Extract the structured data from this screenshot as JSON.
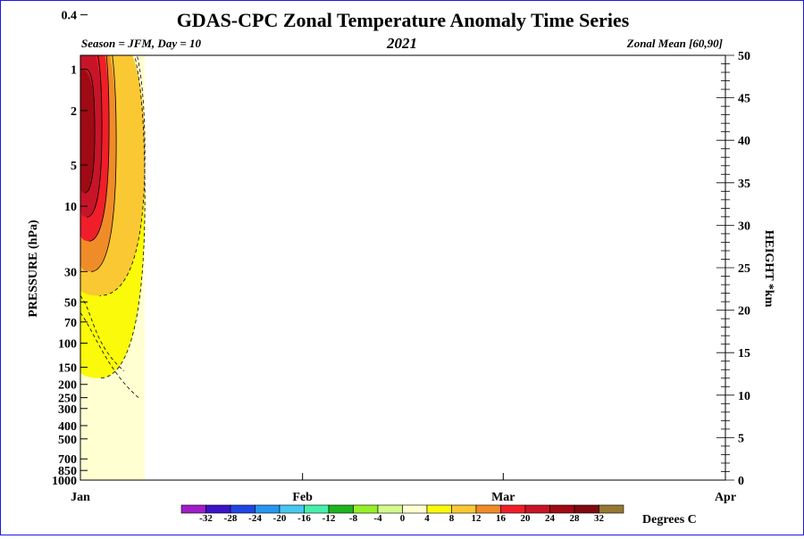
{
  "chart_data": {
    "type": "heatmap",
    "title": "GDAS-CPC Zonal Temperature Anomaly Time Series",
    "subtitle_left": "Season = JFM, Day =  10",
    "subtitle_center": "2021",
    "subtitle_right": "Zonal Mean [60,90]",
    "ylabel_left": "PRESSURE (hPa)",
    "ylabel_right": "HEIGHT *km",
    "pressure_ticks": [
      "0.4",
      "1",
      "2",
      "5",
      "10",
      "30",
      "50",
      "70",
      "100",
      "150",
      "200",
      "250",
      "300",
      "400",
      "500",
      "700",
      "850",
      "1000"
    ],
    "height_ticks": [
      "0",
      "5",
      "10",
      "15",
      "20",
      "25",
      "30",
      "35",
      "40",
      "45",
      "50"
    ],
    "height_range_km": [
      0,
      50
    ],
    "time_labels": [
      "Jan",
      "Feb",
      "Mar",
      "Apr"
    ],
    "time_range_days": [
      1,
      91
    ],
    "data_days_shown": [
      1,
      10
    ],
    "colorbar_label": "Degrees C",
    "colorbar_levels": [
      "-32",
      "-28",
      "-24",
      "-20",
      "-16",
      "-12",
      "-8",
      "-4",
      "0",
      "4",
      "8",
      "12",
      "16",
      "20",
      "24",
      "28",
      "32"
    ],
    "colorbar_colors": [
      "#a01ec8",
      "#3c14c8",
      "#1e46e6",
      "#2896f0",
      "#46c8f0",
      "#46f0aa",
      "#1eb41e",
      "#96f028",
      "#d2fa8c",
      "#ffffd2",
      "#fafa0a",
      "#fac832",
      "#f08c28",
      "#f01e28",
      "#c81428",
      "#a00a14",
      "#7f0a10",
      "#967832"
    ],
    "anomaly_field": [
      {
        "day_start": 1,
        "day_end": 10,
        "p_top": 0.4,
        "p_bottom": 1000,
        "level": "0 to 4"
      },
      {
        "day_start": 1,
        "day_end": 10,
        "p_top": 0.4,
        "p_bottom": 180,
        "level": "4 to 8"
      },
      {
        "day_start": 1,
        "day_end": 10,
        "p_top": 0.4,
        "p_bottom": 45,
        "level": "8 to 12"
      },
      {
        "day_start": 1,
        "day_end": 6,
        "p_top": 0.4,
        "p_bottom": 30,
        "level": "12 to 16"
      },
      {
        "day_start": 1,
        "day_end": 5,
        "p_top": 0.4,
        "p_bottom": 18,
        "level": "16 to 20"
      },
      {
        "day_start": 1,
        "day_end": 4,
        "p_top": 0.6,
        "p_bottom": 12,
        "level": "20 to 24"
      },
      {
        "day_start": 1,
        "day_end": 3,
        "p_top": 1.0,
        "p_bottom": 8,
        "level": "24 to 28"
      }
    ]
  }
}
